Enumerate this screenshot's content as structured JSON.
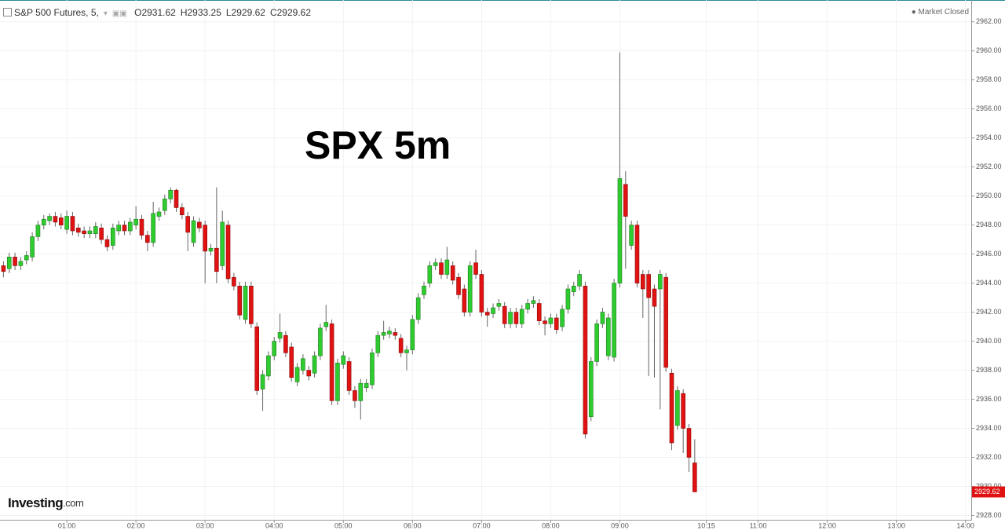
{
  "header": {
    "symbol": "S&P 500 Futures, 5,",
    "open": "O2931.62",
    "high": "H2933.25",
    "low": "L2929.62",
    "close": "C2929.62",
    "status": "Market Closed"
  },
  "brand": {
    "name": "Investing",
    "suffix": ".com"
  },
  "chart_data": {
    "type": "candlestick",
    "annotation": "SPX 5m",
    "up_color": "#2ecc2e",
    "down_color": "#e01212",
    "grid": true,
    "xlim": [
      2,
      845
    ],
    "ylim": [
      2927.7,
      2963.5
    ],
    "xticks": [
      {
        "value": 60,
        "label": "01:00"
      },
      {
        "value": 120,
        "label": "02:00"
      },
      {
        "value": 180,
        "label": "03:00"
      },
      {
        "value": 240,
        "label": "04:00"
      },
      {
        "value": 300,
        "label": "05:00"
      },
      {
        "value": 360,
        "label": "06:00"
      },
      {
        "value": 420,
        "label": "07:00"
      },
      {
        "value": 480,
        "label": "08:00"
      },
      {
        "value": 540,
        "label": "09:00"
      },
      {
        "value": 615,
        "label": "10:15"
      },
      {
        "value": 660,
        "label": "11:00"
      },
      {
        "value": 720,
        "label": "12:00"
      },
      {
        "value": 780,
        "label": "13:00"
      },
      {
        "value": 840,
        "label": "14:00"
      }
    ],
    "yticks": [
      {
        "value": 2928,
        "label": "2928.00"
      },
      {
        "value": 2930,
        "label": "2930.00"
      },
      {
        "value": 2932,
        "label": "2932.00"
      },
      {
        "value": 2934,
        "label": "2934.00"
      },
      {
        "value": 2936,
        "label": "2936.00"
      },
      {
        "value": 2938,
        "label": "2938.00"
      },
      {
        "value": 2940,
        "label": "2940.00"
      },
      {
        "value": 2942,
        "label": "2942.00"
      },
      {
        "value": 2944,
        "label": "2944.00"
      },
      {
        "value": 2946,
        "label": "2946.00"
      },
      {
        "value": 2948,
        "label": "2948.00"
      },
      {
        "value": 2950,
        "label": "2950.00"
      },
      {
        "value": 2952,
        "label": "2952.00"
      },
      {
        "value": 2954,
        "label": "2954.00"
      },
      {
        "value": 2956,
        "label": "2956.00"
      },
      {
        "value": 2958,
        "label": "2958.00"
      },
      {
        "value": 2960,
        "label": "2960.00"
      },
      {
        "value": 2962,
        "label": "2962.00"
      }
    ],
    "x": [
      5,
      10,
      15,
      20,
      25,
      30,
      35,
      40,
      45,
      50,
      55,
      60,
      65,
      70,
      75,
      80,
      85,
      90,
      95,
      100,
      105,
      110,
      115,
      120,
      125,
      130,
      135,
      140,
      145,
      150,
      155,
      160,
      165,
      170,
      175,
      180,
      185,
      190,
      195,
      200,
      205,
      210,
      215,
      220,
      225,
      230,
      235,
      240,
      245,
      250,
      255,
      260,
      265,
      270,
      275,
      280,
      285,
      290,
      295,
      300,
      305,
      310,
      315,
      320,
      325,
      330,
      335,
      340,
      345,
      350,
      355,
      360,
      365,
      370,
      375,
      380,
      385,
      390,
      395,
      400,
      405,
      410,
      415,
      420,
      425,
      430,
      435,
      440,
      445,
      450,
      455,
      460,
      465,
      470,
      475,
      480,
      485,
      490,
      495,
      500,
      505,
      510,
      515,
      520,
      525,
      530,
      535,
      540,
      545,
      550,
      555,
      560,
      565,
      570,
      575,
      580,
      585,
      590,
      595,
      600,
      605
    ],
    "open": [
      2945.2,
      2945.0,
      2945.8,
      2945.2,
      2945.6,
      2945.8,
      2947.2,
      2948.0,
      2948.3,
      2948.6,
      2948.5,
      2947.7,
      2948.6,
      2947.8,
      2947.6,
      2947.4,
      2947.4,
      2947.8,
      2947.0,
      2946.6,
      2947.6,
      2948.0,
      2947.6,
      2948.0,
      2948.4,
      2947.3,
      2946.8,
      2948.6,
      2949.0,
      2949.8,
      2950.4,
      2949.2,
      2948.6,
      2946.8,
      2948.2,
      2948.0,
      2946.2,
      2946.4,
      2945.2,
      2948.0,
      2944.4,
      2943.8,
      2941.5,
      2943.8,
      2941.0,
      2936.7,
      2937.6,
      2939.0,
      2940.2,
      2940.4,
      2939.6,
      2937.2,
      2938.0,
      2938.0,
      2937.8,
      2939.0,
      2941.0,
      2941.2,
      2935.9,
      2938.4,
      2938.6,
      2936.6,
      2935.9,
      2936.8,
      2937.0,
      2939.2,
      2940.4,
      2940.5,
      2940.6,
      2940.2,
      2939.2,
      2939.4,
      2941.5,
      2943.2,
      2944.0,
      2945.2,
      2945.4,
      2944.6,
      2945.2,
      2944.4,
      2943.6,
      2942.0,
      2945.4,
      2944.6,
      2942.0,
      2941.9,
      2942.4,
      2942.4,
      2941.2,
      2942.0,
      2941.2,
      2942.2,
      2942.6,
      2942.6,
      2941.4,
      2941.2,
      2941.6,
      2941.0,
      2942.2,
      2943.4,
      2943.8,
      2943.8,
      2934.8,
      2938.6,
      2941.2,
      2939.0,
      2938.9,
      2944.0,
      2950.8,
      2946.6,
      2948.0,
      2944.6,
      2944.6,
      2943.6,
      2943.6,
      2944.4,
      2937.8,
      2934.2,
      2936.4,
      2934.0,
      2931.62
    ],
    "high": [
      2945.5,
      2946.1,
      2946.1,
      2945.8,
      2946.2,
      2947.5,
      2948.3,
      2948.7,
      2948.8,
      2948.9,
      2948.8,
      2949.0,
      2948.9,
      2948.1,
      2947.9,
      2947.9,
      2948.2,
      2948.1,
      2947.3,
      2948.1,
      2948.3,
      2948.3,
      2948.5,
      2949.3,
      2948.7,
      2947.6,
      2949.6,
      2949.2,
      2950.1,
      2950.6,
      2950.5,
      2949.5,
      2948.9,
      2948.6,
      2948.5,
      2948.3,
      2946.7,
      2950.6,
      2949.0,
      2948.3,
      2944.7,
      2944.1,
      2944.1,
      2944.1,
      2941.3,
      2938.0,
      2939.3,
      2940.3,
      2941.9,
      2940.7,
      2939.9,
      2938.5,
      2939.1,
      2938.3,
      2939.3,
      2941.2,
      2942.5,
      2941.5,
      2938.8,
      2939.3,
      2938.9,
      2936.9,
      2937.4,
      2937.4,
      2939.5,
      2940.7,
      2941.4,
      2941.0,
      2940.9,
      2940.5,
      2939.7,
      2941.8,
      2943.3,
      2944.1,
      2945.5,
      2945.7,
      2945.7,
      2946.5,
      2945.5,
      2944.7,
      2943.9,
      2945.5,
      2946.3,
      2944.9,
      2942.3,
      2942.6,
      2942.9,
      2942.7,
      2942.3,
      2942.3,
      2942.5,
      2942.9,
      2943.1,
      2942.9,
      2941.7,
      2941.9,
      2941.9,
      2942.5,
      2943.9,
      2944.1,
      2944.9,
      2944.1,
      2938.9,
      2941.5,
      2942.3,
      2941.9,
      2944.3,
      2959.9,
      2951.7,
      2948.3,
      2948.3,
      2944.9,
      2944.9,
      2943.9,
      2944.9,
      2944.7,
      2938.1,
      2936.9,
      2936.7,
      2934.3,
      2933.25
    ],
    "low": [
      2944.4,
      2944.7,
      2944.9,
      2944.9,
      2945.3,
      2945.5,
      2946.9,
      2947.7,
      2948.0,
      2947.9,
      2947.7,
      2947.4,
      2947.3,
      2947.2,
      2947.1,
      2947.1,
      2947.1,
      2946.7,
      2946.2,
      2946.3,
      2947.3,
      2947.3,
      2947.3,
      2947.7,
      2947.0,
      2946.2,
      2946.5,
      2948.3,
      2948.7,
      2949.5,
      2948.9,
      2948.4,
      2946.2,
      2946.5,
      2947.5,
      2944.0,
      2945.9,
      2944.0,
      2944.9,
      2944.0,
      2943.5,
      2941.5,
      2941.2,
      2940.9,
      2936.3,
      2935.2,
      2937.3,
      2938.7,
      2939.9,
      2938.9,
      2937.2,
      2936.9,
      2937.7,
      2937.3,
      2937.5,
      2938.7,
      2940.7,
      2935.6,
      2935.6,
      2938.1,
      2936.3,
      2935.4,
      2934.6,
      2936.5,
      2936.7,
      2938.9,
      2940.1,
      2940.2,
      2940.1,
      2938.9,
      2938.0,
      2939.1,
      2941.2,
      2942.9,
      2943.7,
      2944.9,
      2944.3,
      2944.3,
      2943.9,
      2942.9,
      2941.7,
      2941.7,
      2944.3,
      2941.7,
      2941.0,
      2941.6,
      2942.1,
      2940.9,
      2940.9,
      2940.9,
      2940.9,
      2941.9,
      2942.3,
      2941.1,
      2940.4,
      2940.9,
      2940.5,
      2940.7,
      2941.9,
      2943.1,
      2943.5,
      2933.3,
      2934.5,
      2938.3,
      2940.9,
      2938.7,
      2938.6,
      2943.7,
      2945.0,
      2946.3,
      2943.7,
      2941.6,
      2937.6,
      2937.5,
      2935.3,
      2937.9,
      2932.5,
      2933.9,
      2932.3,
      2931.0,
      2929.62
    ],
    "close": [
      2944.8,
      2945.8,
      2945.2,
      2945.5,
      2945.9,
      2947.2,
      2948.0,
      2948.4,
      2948.6,
      2948.2,
      2948.0,
      2948.6,
      2947.6,
      2947.5,
      2947.4,
      2947.6,
      2947.9,
      2947.0,
      2946.5,
      2947.8,
      2948.0,
      2947.6,
      2948.2,
      2948.4,
      2947.3,
      2946.8,
      2948.8,
      2948.9,
      2949.8,
      2950.4,
      2949.2,
      2948.7,
      2947.5,
      2948.3,
      2947.8,
      2946.2,
      2946.4,
      2944.8,
      2948.2,
      2944.3,
      2943.8,
      2941.8,
      2943.8,
      2941.2,
      2936.6,
      2937.7,
      2939.0,
      2940.0,
      2940.6,
      2939.2,
      2937.5,
      2938.2,
      2938.8,
      2937.6,
      2939.0,
      2940.9,
      2941.3,
      2935.9,
      2938.5,
      2939.0,
      2936.6,
      2935.9,
      2937.1,
      2937.1,
      2939.2,
      2940.4,
      2940.6,
      2940.7,
      2940.4,
      2939.2,
      2939.4,
      2941.5,
      2943.0,
      2943.8,
      2945.2,
      2945.4,
      2944.6,
      2945.6,
      2944.2,
      2943.2,
      2942.0,
      2945.2,
      2944.6,
      2942.0,
      2941.8,
      2942.3,
      2942.6,
      2941.2,
      2942.0,
      2941.2,
      2942.2,
      2942.6,
      2942.8,
      2941.4,
      2941.2,
      2941.6,
      2940.8,
      2942.2,
      2943.6,
      2943.8,
      2944.6,
      2933.6,
      2938.6,
      2941.2,
      2942.0,
      2941.6,
      2944.0,
      2951.2,
      2948.6,
      2948.0,
      2944.0,
      2943.6,
      2943.0,
      2942.4,
      2944.6,
      2938.2,
      2933.0,
      2936.6,
      2934.0,
      2932.0,
      2929.62
    ]
  }
}
